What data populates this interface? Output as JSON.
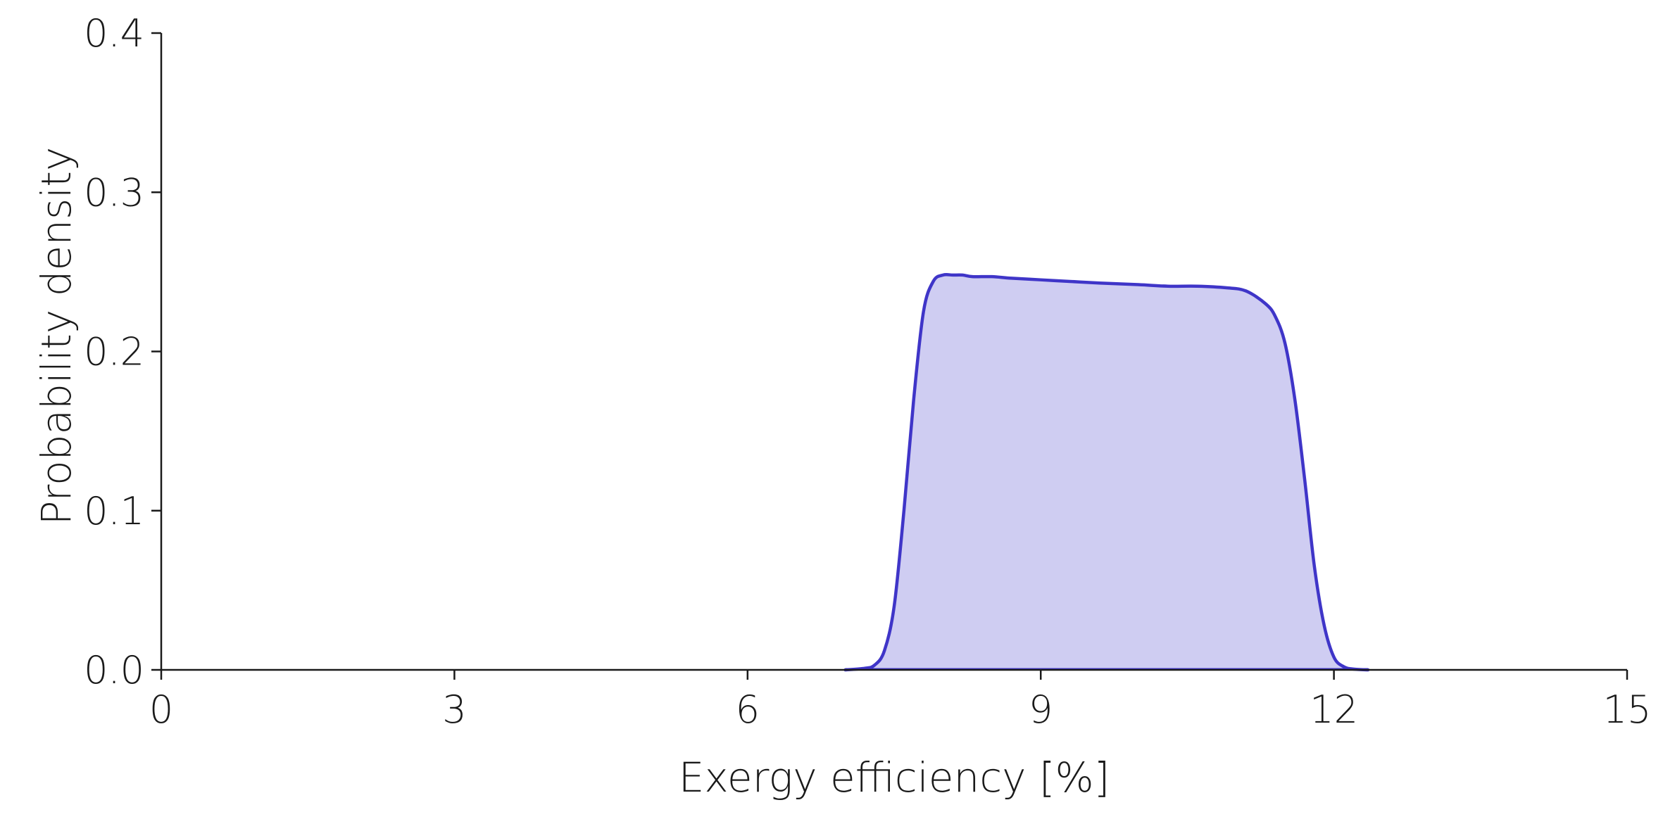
{
  "chart_data": {
    "type": "area",
    "title": "",
    "xlabel": "Exergy efficiency [%]",
    "ylabel": "Probability density",
    "xlim": [
      0,
      15
    ],
    "ylim": [
      0,
      0.4
    ],
    "xticks": [
      "0",
      "3",
      "6",
      "9",
      "12",
      "15"
    ],
    "yticks": [
      "0.0",
      "0.1",
      "0.2",
      "0.3",
      "0.4"
    ],
    "grid": false,
    "legend": "none",
    "colors": {
      "line": "#3f35c8",
      "fill": "#cfcdf2",
      "axis": "#1a1a1a"
    },
    "series": [
      {
        "x": [
          7.0,
          7.2,
          7.3,
          7.4,
          7.5,
          7.6,
          7.7,
          7.8,
          7.9,
          8.0,
          8.1,
          8.2,
          8.3,
          8.5,
          8.7,
          9.0,
          9.3,
          9.6,
          10.0,
          10.3,
          10.6,
          10.9,
          11.1,
          11.3,
          11.4,
          11.5,
          11.6,
          11.7,
          11.8,
          11.9,
          12.0,
          12.1,
          12.2,
          12.35
        ],
        "y": [
          0.0,
          0.001,
          0.003,
          0.012,
          0.04,
          0.1,
          0.17,
          0.225,
          0.244,
          0.248,
          0.248,
          0.248,
          0.247,
          0.247,
          0.246,
          0.245,
          0.244,
          0.243,
          0.242,
          0.241,
          0.241,
          0.24,
          0.238,
          0.23,
          0.222,
          0.205,
          0.17,
          0.12,
          0.065,
          0.028,
          0.008,
          0.002,
          0.0005,
          0.0
        ]
      }
    ]
  }
}
